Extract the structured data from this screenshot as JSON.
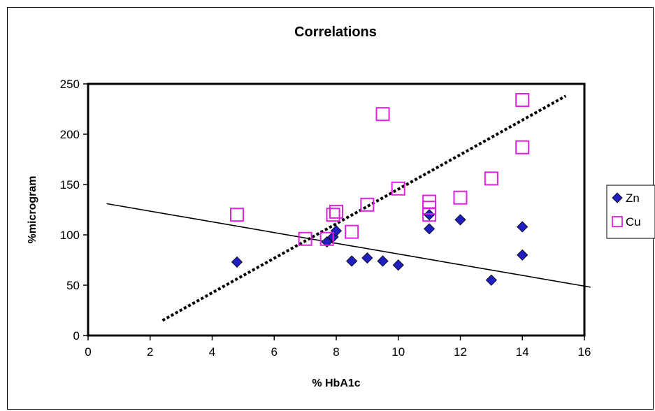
{
  "chart_data": {
    "type": "scatter",
    "title": "Correlations",
    "xlabel": "% HbA1c",
    "ylabel": "%microgram",
    "xlim": [
      0,
      16
    ],
    "ylim": [
      0,
      250
    ],
    "xticks": [
      "0",
      "2",
      "4",
      "6",
      "8",
      "10",
      "12",
      "14",
      "16"
    ],
    "yticks": [
      "0",
      "50",
      "100",
      "150",
      "200",
      "250"
    ],
    "grid": false,
    "legend_position": "right",
    "series": [
      {
        "name": "Zn",
        "marker": "diamond-filled",
        "color": "#1f1fbf",
        "points": [
          [
            4.8,
            73
          ],
          [
            7.7,
            93
          ],
          [
            7.9,
            98
          ],
          [
            8,
            104
          ],
          [
            8.5,
            74
          ],
          [
            9,
            77
          ],
          [
            9.5,
            74
          ],
          [
            10,
            70
          ],
          [
            11,
            106
          ],
          [
            11,
            120
          ],
          [
            12,
            115
          ],
          [
            13,
            55
          ],
          [
            14,
            108
          ],
          [
            14,
            80
          ]
        ]
      },
      {
        "name": "Cu",
        "marker": "square-open",
        "color": "#e020e0",
        "points": [
          [
            4.8,
            120
          ],
          [
            7,
            96
          ],
          [
            7.7,
            96
          ],
          [
            7.9,
            120
          ],
          [
            8,
            123
          ],
          [
            8.5,
            103
          ],
          [
            9,
            130
          ],
          [
            9.5,
            220
          ],
          [
            10,
            146
          ],
          [
            11,
            133
          ],
          [
            11,
            127
          ],
          [
            11,
            120
          ],
          [
            12,
            137
          ],
          [
            13,
            156
          ],
          [
            14,
            187
          ],
          [
            14,
            234
          ]
        ]
      }
    ],
    "trendlines": [
      {
        "series": "Zn",
        "style": "solid",
        "x": [
          0.6,
          16.2
        ],
        "y": [
          131,
          48
        ]
      },
      {
        "series": "Cu",
        "style": "dotted",
        "x": [
          2.4,
          15.4
        ],
        "y": [
          15,
          238
        ]
      }
    ]
  }
}
